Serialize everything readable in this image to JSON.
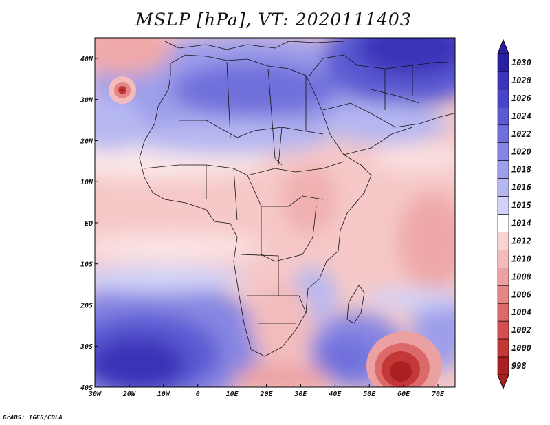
{
  "title": "MSLP [hPa], VT: 2020111403",
  "credit": "GrADS: IGES/COLA",
  "map": {
    "lon_range": [
      -30,
      75
    ],
    "lat_range": [
      -40,
      45
    ],
    "lon_ticks": [
      {
        "value": -30,
        "label": "30W"
      },
      {
        "value": -20,
        "label": "20W"
      },
      {
        "value": -10,
        "label": "10W"
      },
      {
        "value": 0,
        "label": "0"
      },
      {
        "value": 10,
        "label": "10E"
      },
      {
        "value": 20,
        "label": "20E"
      },
      {
        "value": 30,
        "label": "30E"
      },
      {
        "value": 40,
        "label": "40E"
      },
      {
        "value": 50,
        "label": "50E"
      },
      {
        "value": 60,
        "label": "60E"
      },
      {
        "value": 70,
        "label": "70E"
      }
    ],
    "lat_ticks": [
      {
        "value": 40,
        "label": "40N"
      },
      {
        "value": 30,
        "label": "30N"
      },
      {
        "value": 20,
        "label": "20N"
      },
      {
        "value": 10,
        "label": "10N"
      },
      {
        "value": 0,
        "label": "EQ"
      },
      {
        "value": -10,
        "label": "10S"
      },
      {
        "value": -20,
        "label": "20S"
      },
      {
        "value": -30,
        "label": "30S"
      },
      {
        "value": -40,
        "label": "40S"
      }
    ]
  },
  "colorbar": {
    "levels": [
      "1030",
      "1028",
      "1026",
      "1024",
      "1022",
      "1020",
      "1018",
      "1016",
      "1015",
      "1014",
      "1012",
      "1010",
      "1008",
      "1006",
      "1004",
      "1002",
      "1000",
      "998"
    ],
    "colors": [
      "#2a1f9e",
      "#3b33b8",
      "#4a45c8",
      "#5c5ad2",
      "#716fdb",
      "#8786e3",
      "#9e9eea",
      "#b6b7f1",
      "#d2d3f8",
      "#ffffff",
      "#f8d3d3",
      "#f3bcbc",
      "#eba1a1",
      "#e48686",
      "#dd6a6a",
      "#d34f4f",
      "#c43737",
      "#a82020"
    ]
  },
  "colors": {
    "border": "#111111",
    "frame": "#000000"
  },
  "chart_data": {
    "type": "heatmap",
    "title": "MSLP [hPa], VT: 2020111403",
    "variable": "Mean sea level pressure (hPa)",
    "x_axis": "longitude",
    "y_axis": "latitude",
    "xlim": [
      -30,
      75
    ],
    "ylim": [
      -40,
      45
    ],
    "features": [
      {
        "name": "high",
        "lon": 15,
        "lat": 32,
        "value": 1026
      },
      {
        "name": "high",
        "lon": 55,
        "lat": 42,
        "value": 1030
      },
      {
        "name": "high",
        "lon": -20,
        "lat": -33,
        "value": 1028
      },
      {
        "name": "high",
        "lon": 45,
        "lat": -33,
        "value": 1022
      },
      {
        "name": "low",
        "lon": -22,
        "lat": 32,
        "value": 1006
      },
      {
        "name": "low",
        "lon": 59,
        "lat": -38,
        "value": 998
      },
      {
        "name": "low",
        "lon": 33,
        "lat": -38,
        "value": 1008
      },
      {
        "name": "trough",
        "lon": 25,
        "lat": 0,
        "value": 1010
      }
    ]
  }
}
